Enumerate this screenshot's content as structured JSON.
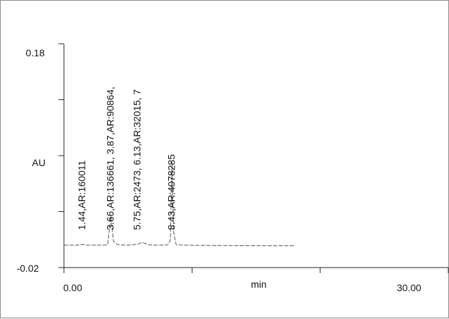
{
  "chart_data": {
    "type": "line",
    "title": "",
    "xlabel": "min",
    "ylabel": "AU",
    "xlim": [
      0,
      30
    ],
    "ylim": [
      -0.02,
      0.18
    ],
    "x_tick_labels": [
      "0.00",
      "30.00"
    ],
    "y_tick_labels": [
      "0.18",
      "-0.02"
    ],
    "grid": false,
    "peaks": [
      {
        "rt": 1.44,
        "area": 160011,
        "label": "1.44,AR:160011"
      },
      {
        "rt": 3.66,
        "area": 136661,
        "label": "3.66,AR:136661, 3.87,AR:90864,"
      },
      {
        "rt": 5.75,
        "area": 2473,
        "label": "5.75,AR:2473, 6.13,AR:32015, 7"
      },
      {
        "rt": 8.43,
        "area": 4078285,
        "label": "8.43,AR:4078285"
      }
    ],
    "series": [
      {
        "x": [
          0.0,
          1.0,
          1.44,
          1.8,
          3.0,
          3.4,
          3.66,
          3.87,
          4.2,
          5.0,
          5.75,
          6.13,
          6.6,
          7.5,
          8.1,
          8.3,
          8.43,
          8.55,
          8.75,
          9.5,
          12.0,
          15.0,
          18.0
        ],
        "y": [
          0.0,
          0.0,
          0.0008,
          0.0,
          0.0,
          0.0004,
          0.0255,
          0.0035,
          0.0005,
          0.0,
          0.0008,
          0.0025,
          0.0003,
          0.0,
          0.0004,
          0.004,
          0.0745,
          0.012,
          0.0005,
          0.0,
          -0.0003,
          -0.0005,
          -0.0005
        ]
      }
    ]
  }
}
